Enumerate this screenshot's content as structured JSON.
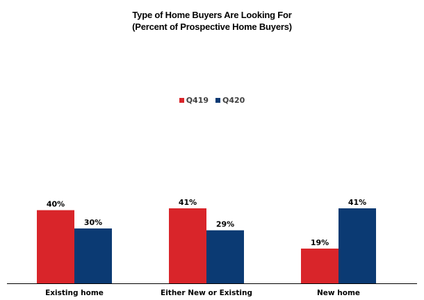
{
  "chart_data": {
    "type": "bar",
    "title_lines": [
      "Type of Home Buyers Are Looking For",
      "(Percent of Prospective Home Buyers)"
    ],
    "categories": [
      "Existing home",
      "Either New or Existing",
      "New home"
    ],
    "series": [
      {
        "name": "Q419",
        "values": [
          40,
          41,
          19
        ],
        "labels": [
          "40%",
          "41%",
          "19%"
        ],
        "color": "#d9252a"
      },
      {
        "name": "Q420",
        "values": [
          30,
          29,
          41
        ],
        "labels": [
          "30%",
          "29%",
          "41%"
        ],
        "color": "#0b3a73"
      }
    ],
    "ylim": [
      0,
      41
    ],
    "xlabel": "",
    "ylabel": "",
    "legend_position": "top-center",
    "grid": false
  }
}
